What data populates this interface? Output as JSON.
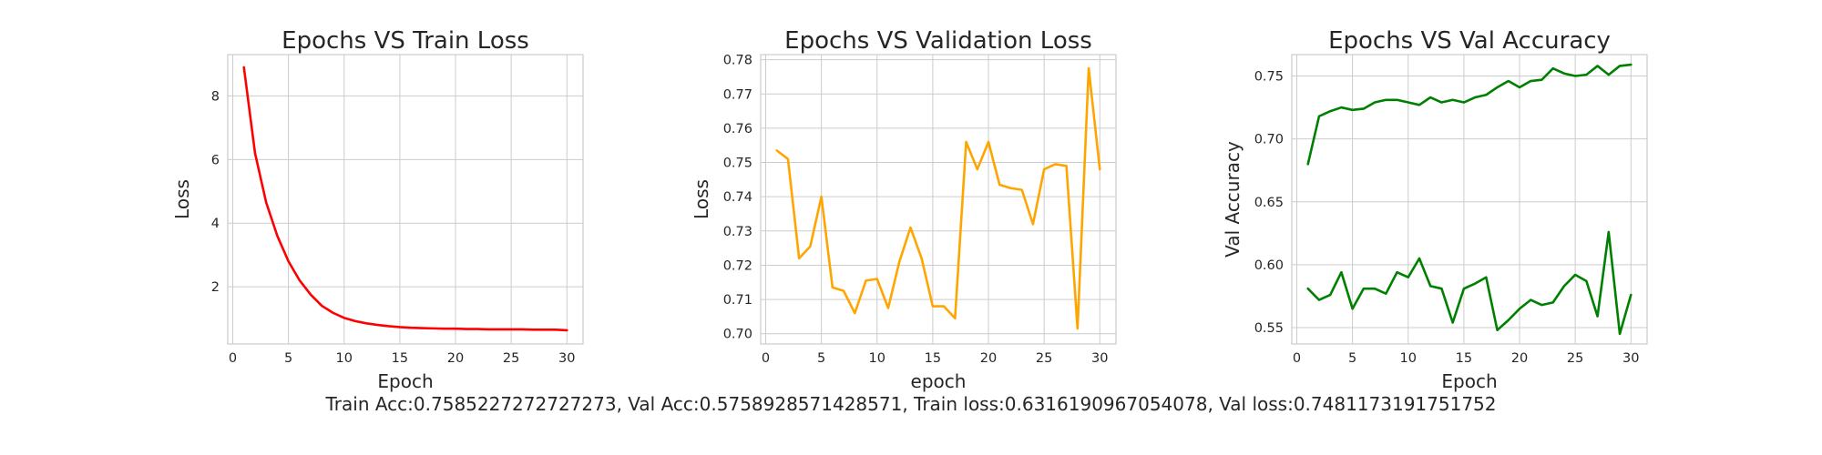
{
  "chart_data": [
    {
      "type": "line",
      "title": "Epochs VS Train Loss",
      "xlabel": "Epoch",
      "ylabel": "Loss",
      "xlim": [
        -0.45,
        31.45
      ],
      "ylim": [
        0.2,
        9.3
      ],
      "xticks": [
        0,
        5,
        10,
        15,
        20,
        25,
        30
      ],
      "yticks": [
        2,
        4,
        6,
        8
      ],
      "grid": true,
      "series": [
        {
          "color": "#ff0000",
          "x": [
            1,
            2,
            3,
            4,
            5,
            6,
            7,
            8,
            9,
            10,
            11,
            12,
            13,
            14,
            15,
            16,
            17,
            18,
            19,
            20,
            21,
            22,
            23,
            24,
            25,
            26,
            27,
            28,
            29,
            30
          ],
          "values": [
            8.9,
            6.2,
            4.65,
            3.6,
            2.8,
            2.2,
            1.75,
            1.4,
            1.18,
            1.02,
            0.92,
            0.85,
            0.8,
            0.76,
            0.73,
            0.71,
            0.7,
            0.69,
            0.68,
            0.68,
            0.67,
            0.67,
            0.66,
            0.66,
            0.66,
            0.66,
            0.65,
            0.65,
            0.65,
            0.63
          ]
        }
      ]
    },
    {
      "type": "line",
      "title": "Epochs VS Validation Loss",
      "xlabel": "epoch",
      "ylabel": "Loss",
      "xlim": [
        -0.45,
        31.45
      ],
      "ylim": [
        0.697,
        0.7815
      ],
      "xticks": [
        0,
        5,
        10,
        15,
        20,
        25,
        30
      ],
      "yticks": [
        0.7,
        0.71,
        0.72,
        0.73,
        0.74,
        0.75,
        0.76,
        0.77,
        0.78
      ],
      "ytick_labels": [
        "0.70",
        "0.71",
        "0.72",
        "0.73",
        "0.74",
        "0.75",
        "0.76",
        "0.77",
        "0.78"
      ],
      "grid": true,
      "series": [
        {
          "color": "#ffa500",
          "x": [
            1,
            2,
            3,
            4,
            5,
            6,
            7,
            8,
            9,
            10,
            11,
            12,
            13,
            14,
            15,
            16,
            17,
            18,
            19,
            20,
            21,
            22,
            23,
            24,
            25,
            26,
            27,
            28,
            29,
            30
          ],
          "values": [
            0.7535,
            0.751,
            0.722,
            0.7255,
            0.74,
            0.7135,
            0.7125,
            0.706,
            0.7155,
            0.716,
            0.7075,
            0.721,
            0.731,
            0.722,
            0.708,
            0.708,
            0.7045,
            0.756,
            0.748,
            0.756,
            0.7435,
            0.7425,
            0.742,
            0.732,
            0.748,
            0.7495,
            0.749,
            0.7015,
            0.7775,
            0.748
          ]
        }
      ]
    },
    {
      "type": "line",
      "title": "Epochs VS Val Accuracy",
      "xlabel": "Epoch",
      "ylabel": "Val Accuracy",
      "xlim": [
        -0.45,
        31.45
      ],
      "ylim": [
        0.537,
        0.767
      ],
      "xticks": [
        0,
        5,
        10,
        15,
        20,
        25,
        30
      ],
      "yticks": [
        0.55,
        0.6,
        0.65,
        0.7,
        0.75
      ],
      "ytick_labels": [
        "0.55",
        "0.60",
        "0.65",
        "0.70",
        "0.75"
      ],
      "grid": true,
      "series": [
        {
          "color": "#008000",
          "x": [
            1,
            2,
            3,
            4,
            5,
            6,
            7,
            8,
            9,
            10,
            11,
            12,
            13,
            14,
            15,
            16,
            17,
            18,
            19,
            20,
            21,
            22,
            23,
            24,
            25,
            26,
            27,
            28,
            29,
            30
          ],
          "values": [
            0.68,
            0.718,
            0.722,
            0.725,
            0.723,
            0.724,
            0.729,
            0.731,
            0.731,
            0.729,
            0.727,
            0.733,
            0.729,
            0.731,
            0.729,
            0.733,
            0.735,
            0.741,
            0.746,
            0.741,
            0.746,
            0.747,
            0.756,
            0.752,
            0.75,
            0.751,
            0.758,
            0.751,
            0.758,
            0.759
          ]
        },
        {
          "color": "#008000",
          "x": [
            1,
            2,
            3,
            4,
            5,
            6,
            7,
            8,
            9,
            10,
            11,
            12,
            13,
            14,
            15,
            16,
            17,
            18,
            19,
            20,
            21,
            22,
            23,
            24,
            25,
            26,
            27,
            28,
            29,
            30
          ],
          "values": [
            0.581,
            0.572,
            0.576,
            0.594,
            0.565,
            0.581,
            0.581,
            0.577,
            0.594,
            0.59,
            0.605,
            0.583,
            0.581,
            0.554,
            0.581,
            0.585,
            0.59,
            0.548,
            0.556,
            0.565,
            0.572,
            0.568,
            0.57,
            0.583,
            0.592,
            0.587,
            0.559,
            0.626,
            0.545,
            0.576
          ]
        }
      ]
    }
  ],
  "footer_text": "Train Acc:0.7585227272727273, Val Acc:0.5758928571428571, Train loss:0.6316190967054078, Val loss:0.7481173191751752"
}
